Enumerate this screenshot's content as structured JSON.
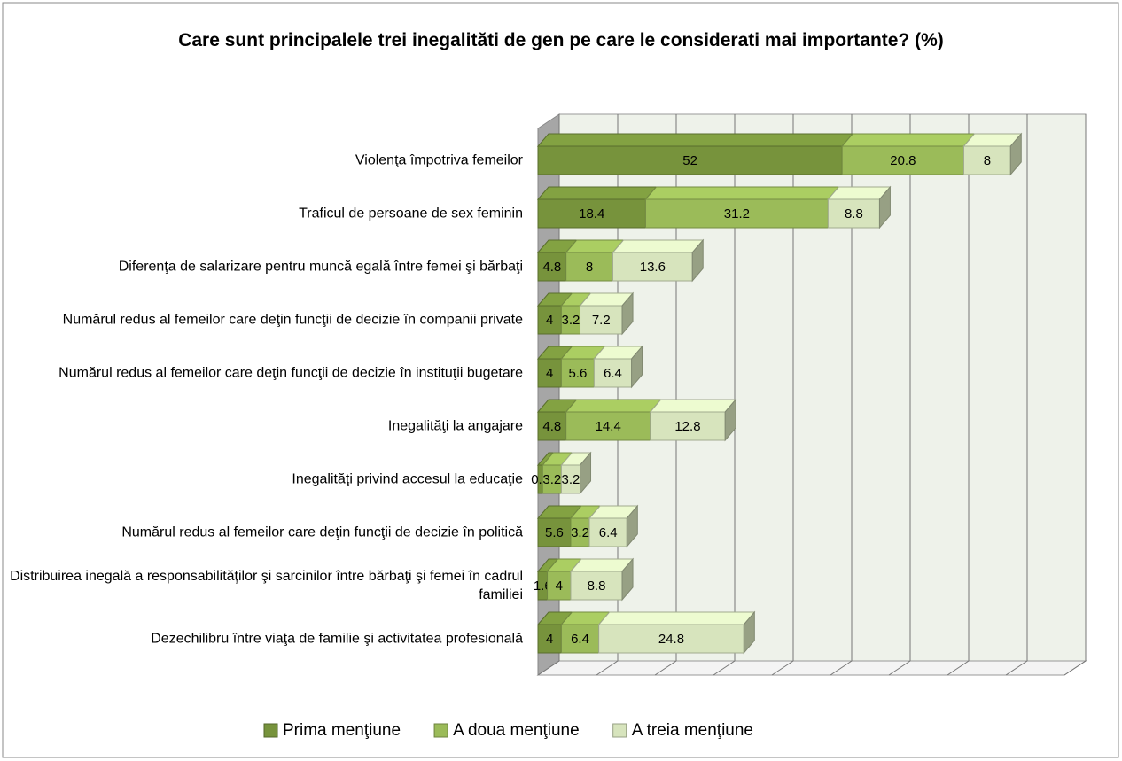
{
  "chart_data": {
    "type": "bar3d_stacked_horizontal",
    "title": "Care sunt principalele trei inegalităti de gen pe care le considerati mai importante? (%)",
    "categories": [
      "Violenţa împotriva femeilor",
      "Traficul de persoane de sex feminin",
      "Diferenţa de salarizare pentru muncă egală între femei şi bărbaţi",
      "Numărul redus al femeilor care deţin funcţii de decizie în companii private",
      "Numărul redus al femeilor care deţin funcţii de decizie în instituţii bugetare",
      "Inegalităţi la angajare",
      "Inegalităţi privind accesul la educaţie",
      "Numărul redus al femeilor care deţin funcţii de decizie în politică",
      "Distribuirea inegală a responsabilităţilor şi sarcinilor între bărbaţi şi femei în cadrul familiei",
      "Dezechilibru între viaţa de familie şi activitatea profesională"
    ],
    "series": [
      {
        "name": "Prima menţiune",
        "color": "#77933c",
        "values": [
          52,
          18.4,
          4.8,
          4,
          4,
          4.8,
          0.8,
          5.6,
          1.6,
          4
        ]
      },
      {
        "name": "A doua menţiune",
        "color": "#9bbb59",
        "values": [
          20.8,
          31.2,
          8,
          3.2,
          5.6,
          14.4,
          3.2,
          3.2,
          4,
          6.4
        ]
      },
      {
        "name": "A treia menţiune",
        "color": "#d7e4bd",
        "values": [
          8,
          8.8,
          13.6,
          7.2,
          6.4,
          12.8,
          3.2,
          6.4,
          8.8,
          24.8
        ]
      }
    ],
    "xlim": [
      0,
      90
    ],
    "xticks": [
      0,
      10,
      20,
      30,
      40,
      50,
      60,
      70,
      80,
      90
    ],
    "grid": true,
    "legend": "bottom"
  }
}
